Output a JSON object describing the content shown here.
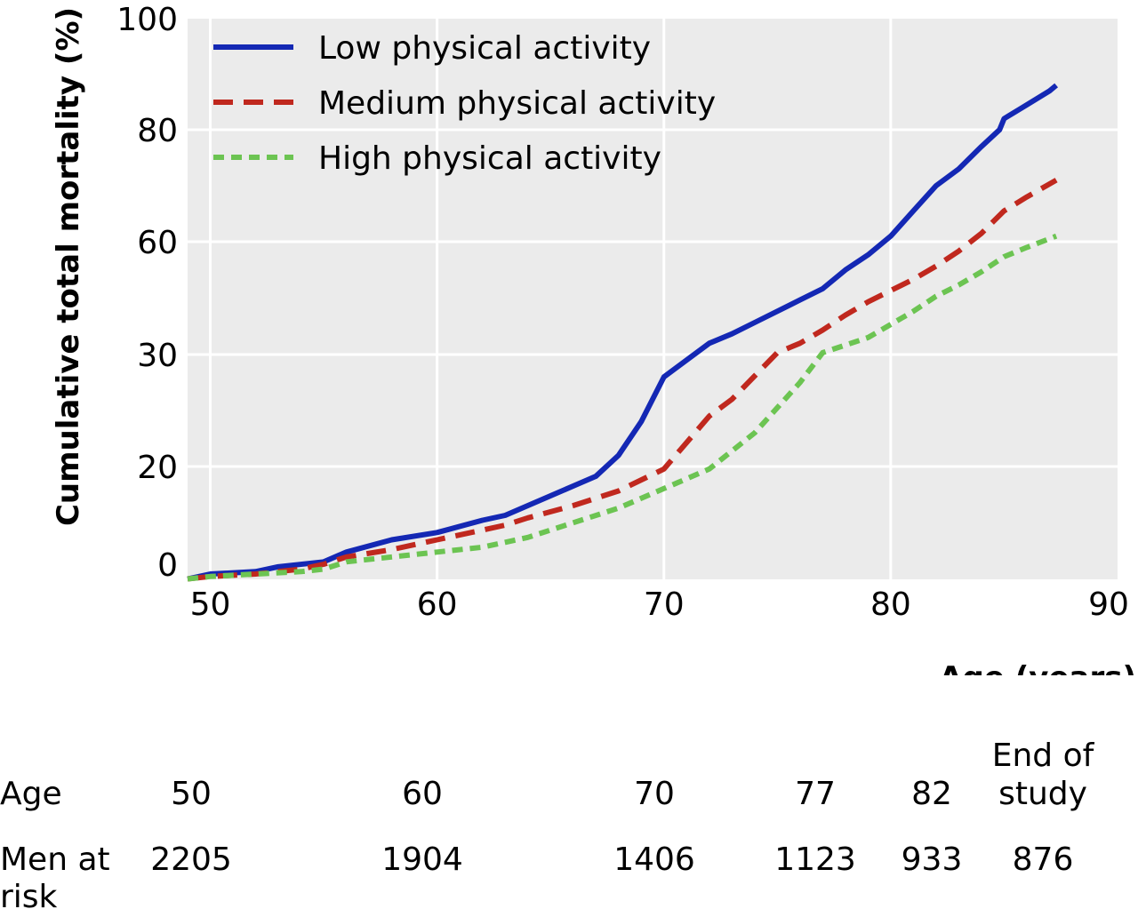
{
  "chart_data": {
    "type": "line",
    "title": "",
    "xlabel": "Age (years)",
    "ylabel": "Cumulative total mortality (%)",
    "xlim": [
      49,
      90
    ],
    "x_ticks": [
      50,
      60,
      70,
      80,
      90
    ],
    "y_ticks": [
      "0",
      "20",
      "30",
      "60",
      "80",
      "100"
    ],
    "y_tick_values": [
      0,
      20,
      30,
      60,
      80,
      100
    ],
    "grid": true,
    "legend_position": "top-left",
    "series": [
      {
        "name": "Low physical activity",
        "color": "#1428b4",
        "dash": "solid",
        "points": [
          [
            49,
            -3
          ],
          [
            50,
            -2
          ],
          [
            52,
            -1.5
          ],
          [
            53,
            -0.5
          ],
          [
            55,
            0.5
          ],
          [
            56,
            2.5
          ],
          [
            58,
            5
          ],
          [
            60,
            6.5
          ],
          [
            62,
            9
          ],
          [
            63,
            10
          ],
          [
            64,
            12
          ],
          [
            66,
            16
          ],
          [
            67,
            18
          ],
          [
            68,
            21
          ],
          [
            69,
            24
          ],
          [
            70,
            28
          ],
          [
            72,
            33
          ],
          [
            73,
            35.5
          ],
          [
            74,
            38.5
          ],
          [
            76,
            44.5
          ],
          [
            77,
            47.5
          ],
          [
            78,
            52.5
          ],
          [
            79,
            56.5
          ],
          [
            80,
            61
          ],
          [
            81,
            65.5
          ],
          [
            82,
            70
          ],
          [
            83,
            73
          ],
          [
            84,
            77
          ],
          [
            84.8,
            80
          ],
          [
            85,
            82
          ],
          [
            86,
            84.5
          ],
          [
            87,
            87
          ],
          [
            87.3,
            88
          ]
        ]
      },
      {
        "name": "Medium physical activity",
        "color": "#c0281e",
        "dash": "dashed",
        "points": [
          [
            49,
            -3
          ],
          [
            50,
            -2.5
          ],
          [
            52,
            -2
          ],
          [
            54,
            -1
          ],
          [
            55,
            0
          ],
          [
            56,
            1.5
          ],
          [
            58,
            3
          ],
          [
            60,
            5
          ],
          [
            62,
            7
          ],
          [
            63,
            8
          ],
          [
            64,
            9.5
          ],
          [
            66,
            12
          ],
          [
            68,
            15
          ],
          [
            70,
            19.5
          ],
          [
            72,
            24.5
          ],
          [
            73,
            26
          ],
          [
            75,
            30.5
          ],
          [
            76,
            33
          ],
          [
            77,
            36.5
          ],
          [
            78,
            40.5
          ],
          [
            79,
            44
          ],
          [
            80,
            47
          ],
          [
            81,
            50
          ],
          [
            82,
            53.5
          ],
          [
            83,
            57.5
          ],
          [
            84,
            61.5
          ],
          [
            85,
            65.5
          ],
          [
            86,
            68
          ],
          [
            87.3,
            71
          ]
        ]
      },
      {
        "name": "High physical activity",
        "color": "#6cc452",
        "dash": "dotted",
        "points": [
          [
            49,
            -3
          ],
          [
            50,
            -2.5
          ],
          [
            52,
            -2
          ],
          [
            54,
            -1.5
          ],
          [
            55,
            -1
          ],
          [
            56,
            0.5
          ],
          [
            58,
            1.5
          ],
          [
            60,
            2.5
          ],
          [
            62,
            3.5
          ],
          [
            64,
            5.5
          ],
          [
            66,
            8.5
          ],
          [
            68,
            11.5
          ],
          [
            70,
            15.5
          ],
          [
            72,
            19.5
          ],
          [
            74,
            23
          ],
          [
            76,
            27.5
          ],
          [
            77,
            30.5
          ],
          [
            79,
            34.5
          ],
          [
            80,
            38
          ],
          [
            81,
            41.5
          ],
          [
            82,
            45.5
          ],
          [
            83,
            48.5
          ],
          [
            84,
            52
          ],
          [
            85,
            56
          ],
          [
            86,
            58.5
          ],
          [
            87.3,
            61
          ]
        ]
      }
    ]
  },
  "risk_table": {
    "row_labels": {
      "age": "Age",
      "men_at_risk_line1": "Men at",
      "men_at_risk_line2": "risk"
    },
    "columns": [
      {
        "age": "50",
        "men": "2205"
      },
      {
        "age": "60",
        "men": "1904"
      },
      {
        "age": "70",
        "men": "1406"
      },
      {
        "age": "77",
        "men": "1123"
      },
      {
        "age": "82",
        "men": "933"
      },
      {
        "age_line1": "End of",
        "age_line2": "study",
        "men": "876"
      }
    ]
  }
}
